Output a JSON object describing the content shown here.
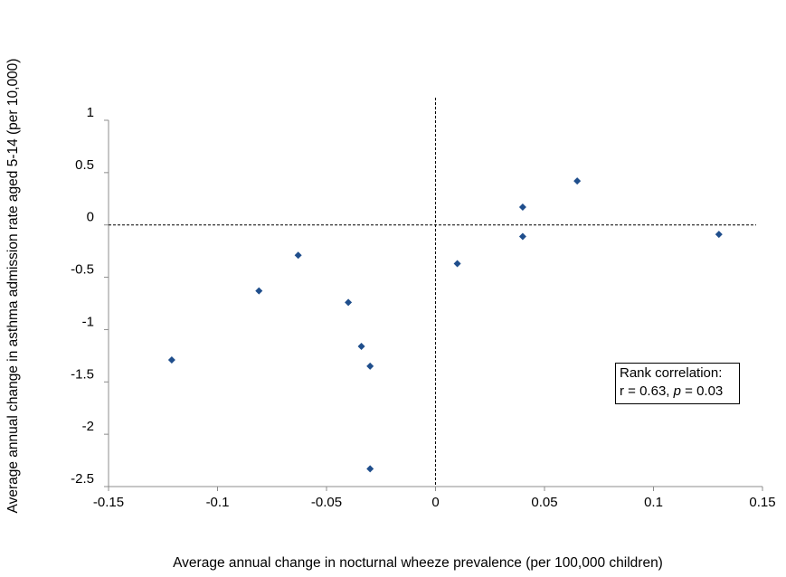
{
  "chart_data": {
    "type": "scatter",
    "xlabel": "Average annual change in nocturnal wheeze prevalence (per 100,000 children)",
    "ylabel": "Average annual change in asthma admission rate aged 5-14 (per 10,000)",
    "xlim": [
      -0.15,
      0.15
    ],
    "ylim": [
      -2.5,
      1
    ],
    "x_ticks": [
      "-0.15",
      "-0.1",
      "-0.05",
      "0",
      "0.05",
      "0.1",
      "0.15"
    ],
    "y_ticks": [
      "1",
      "0.5",
      "0",
      "-0.5",
      "-1",
      "-1.5",
      "-2",
      "-2.5"
    ],
    "x_tick_values": [
      -0.15,
      -0.1,
      -0.05,
      0,
      0.05,
      0.1,
      0.15
    ],
    "y_tick_values": [
      1,
      0.5,
      0,
      -0.5,
      -1,
      -1.5,
      -2,
      -2.5
    ],
    "reference_lines": {
      "x": 0,
      "y": 0,
      "style": "dashed"
    },
    "marker": {
      "shape": "diamond",
      "color": "#1f4e8c"
    },
    "points": [
      {
        "x": -0.121,
        "y": -1.29
      },
      {
        "x": -0.081,
        "y": -0.63
      },
      {
        "x": -0.063,
        "y": -0.29
      },
      {
        "x": -0.04,
        "y": -0.74
      },
      {
        "x": -0.034,
        "y": -1.16
      },
      {
        "x": -0.03,
        "y": -1.35
      },
      {
        "x": -0.03,
        "y": -2.33
      },
      {
        "x": 0.01,
        "y": -0.37
      },
      {
        "x": 0.04,
        "y": 0.17
      },
      {
        "x": 0.04,
        "y": -0.11
      },
      {
        "x": 0.065,
        "y": 0.42
      },
      {
        "x": 0.13,
        "y": -0.09
      }
    ],
    "annotation": {
      "line1": "Rank correlation:",
      "line2_prefix": "r = 0.63, ",
      "line2_p": "p",
      "line2_suffix": " = 0.03"
    },
    "grid": false,
    "legend": "none"
  }
}
